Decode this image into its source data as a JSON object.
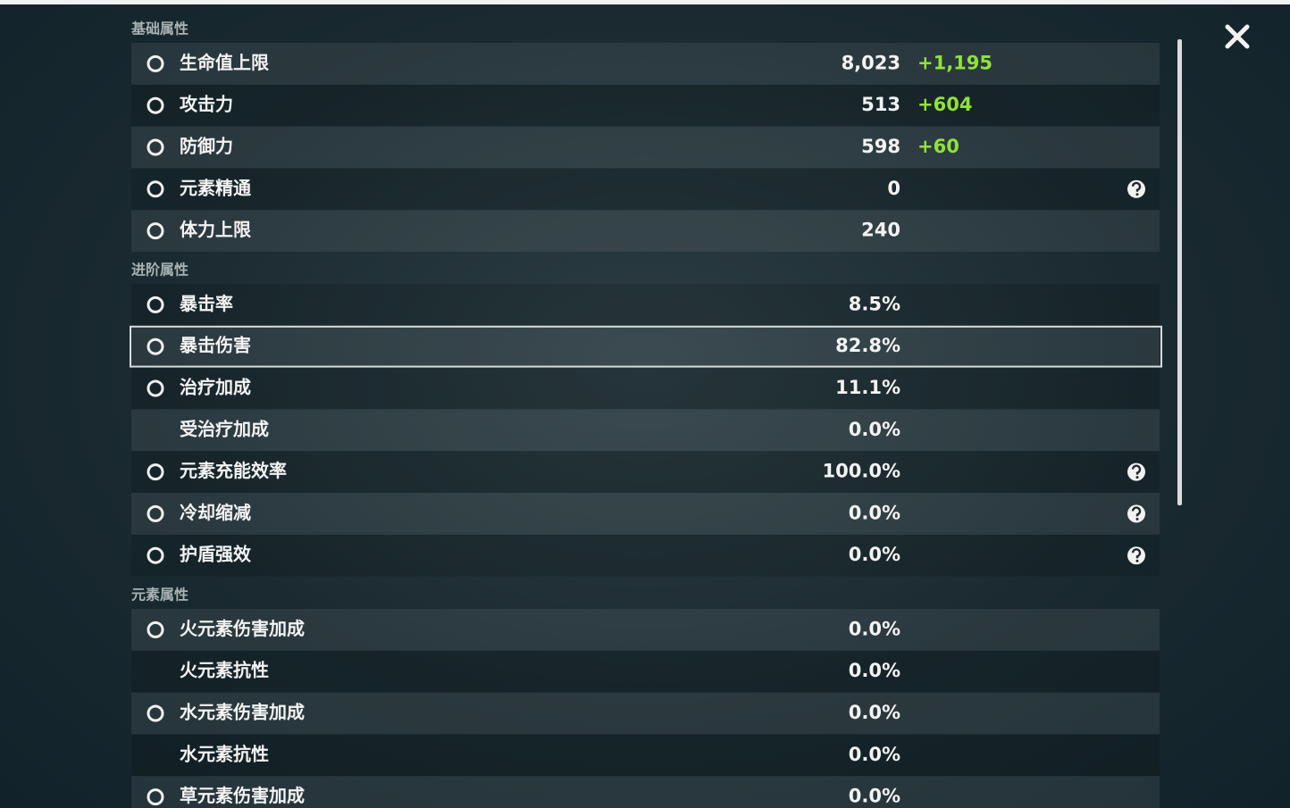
{
  "sections": [
    {
      "title": "基础属性",
      "rows": [
        {
          "label": "生命值上限",
          "value": "8,023",
          "bonus": "+1,195"
        },
        {
          "label": "攻击力",
          "value": "513",
          "bonus": "+604"
        },
        {
          "label": "防御力",
          "value": "598",
          "bonus": "+60"
        },
        {
          "label": "元素精通",
          "value": "0",
          "help": true
        },
        {
          "label": "体力上限",
          "value": "240"
        }
      ]
    },
    {
      "title": "进阶属性",
      "rows": [
        {
          "label": "暴击率",
          "value": "8.5%"
        },
        {
          "label": "暴击伤害",
          "value": "82.8%",
          "selected": true
        },
        {
          "label": "治疗加成",
          "value": "11.1%"
        },
        {
          "label": "受治疗加成",
          "value": "0.0%"
        },
        {
          "label": "元素充能效率",
          "value": "100.0%",
          "help": true
        },
        {
          "label": "冷却缩减",
          "value": "0.0%",
          "help": true
        },
        {
          "label": "护盾强效",
          "value": "0.0%",
          "help": true
        }
      ]
    },
    {
      "title": "元素属性",
      "rows": [
        {
          "label": "火元素伤害加成",
          "value": "0.0%"
        },
        {
          "label": "火元素抗性",
          "value": "0.0%"
        },
        {
          "label": "水元素伤害加成",
          "value": "0.0%"
        },
        {
          "label": "水元素抗性",
          "value": "0.0%"
        },
        {
          "label": "草元素伤害加成",
          "value": "0.0%"
        }
      ]
    }
  ]
}
